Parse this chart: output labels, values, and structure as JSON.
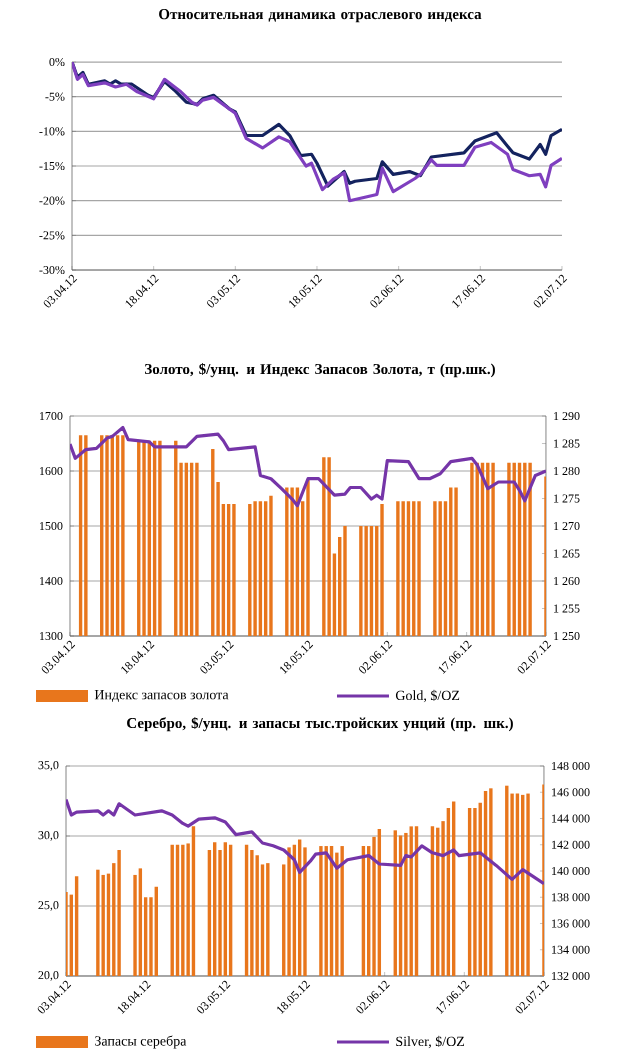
{
  "chart_data": [
    {
      "type": "line",
      "title": "Относительная динамика отраслевого индекса",
      "xlim": [
        "2012-04-03",
        "2012-07-02"
      ],
      "xticks": [
        {
          "value": "2012-04-03",
          "label": "03.04.12"
        },
        {
          "value": "2012-04-18",
          "label": "18.04.12"
        },
        {
          "value": "2012-05-03",
          "label": "03.05.12"
        },
        {
          "value": "2012-05-18",
          "label": "18.05.12"
        },
        {
          "value": "2012-06-02",
          "label": "02.06.12"
        },
        {
          "value": "2012-06-17",
          "label": "17.06.12"
        },
        {
          "value": "2012-07-02",
          "label": "02.07.12"
        }
      ],
      "ylim": [
        -30,
        0
      ],
      "yticks": [
        {
          "value": 0,
          "label": "0%"
        },
        {
          "value": -5,
          "label": "-5%"
        },
        {
          "value": -10,
          "label": "-10%"
        },
        {
          "value": -15,
          "label": "-15%"
        },
        {
          "value": -20,
          "label": "-20%"
        },
        {
          "value": -25,
          "label": "-25%"
        },
        {
          "value": -30,
          "label": "-30%"
        }
      ],
      "grid": "y",
      "series": [
        {
          "color": "#14235f",
          "x": [
            "2012-04-03",
            "2012-04-04",
            "2012-04-05",
            "2012-04-06",
            "2012-04-09",
            "2012-04-10",
            "2012-04-11",
            "2012-04-12",
            "2012-04-14",
            "2012-04-17",
            "2012-04-18",
            "2012-04-20",
            "2012-04-22",
            "2012-04-24",
            "2012-04-26",
            "2012-04-27",
            "2012-04-29",
            "2012-05-02",
            "2012-05-03",
            "2012-05-05",
            "2012-05-08",
            "2012-05-11",
            "2012-05-13",
            "2012-05-15",
            "2012-05-17",
            "2012-05-18",
            "2012-05-20",
            "2012-05-23",
            "2012-05-24",
            "2012-05-25",
            "2012-05-29",
            "2012-05-30",
            "2012-06-01",
            "2012-06-04",
            "2012-06-06",
            "2012-06-08",
            "2012-06-14",
            "2012-06-16",
            "2012-06-20",
            "2012-06-23",
            "2012-06-26",
            "2012-06-28",
            "2012-06-29",
            "2012-06-30",
            "2012-07-02"
          ],
          "values": [
            0,
            -2.2,
            -1.5,
            -3.2,
            -2.7,
            -3.2,
            -2.7,
            -3.2,
            -3.2,
            -4.8,
            -5.1,
            -2.8,
            -4.2,
            -5.8,
            -6.1,
            -5.3,
            -4.8,
            -6.8,
            -7.2,
            -10.6,
            -10.6,
            -9.0,
            -10.6,
            -13.5,
            -13.3,
            -14.6,
            -17.9,
            -15.8,
            -17.5,
            -17.2,
            -16.8,
            -14.4,
            -16.2,
            -15.8,
            -16.4,
            -13.7,
            -13.1,
            -11.4,
            -10.2,
            -13.1,
            -14.0,
            -11.9,
            -13.3,
            -10.6,
            -9.7
          ]
        },
        {
          "color": "#7f3fbf",
          "x": [
            "2012-04-03",
            "2012-04-04",
            "2012-04-05",
            "2012-04-06",
            "2012-04-09",
            "2012-04-11",
            "2012-04-13",
            "2012-04-15",
            "2012-04-18",
            "2012-04-20",
            "2012-04-23",
            "2012-04-25",
            "2012-04-26",
            "2012-04-27",
            "2012-04-29",
            "2012-05-03",
            "2012-05-05",
            "2012-05-08",
            "2012-05-11",
            "2012-05-13",
            "2012-05-16",
            "2012-05-17",
            "2012-05-19",
            "2012-05-21",
            "2012-05-23",
            "2012-05-24",
            "2012-05-29",
            "2012-05-30",
            "2012-06-01",
            "2012-06-05",
            "2012-06-06",
            "2012-06-08",
            "2012-06-09",
            "2012-06-14",
            "2012-06-16",
            "2012-06-19",
            "2012-06-22",
            "2012-06-23",
            "2012-06-26",
            "2012-06-28",
            "2012-06-29",
            "2012-06-30",
            "2012-07-02"
          ],
          "values": [
            0,
            -2.5,
            -1.8,
            -3.4,
            -3.0,
            -3.6,
            -3.2,
            -4.3,
            -5.3,
            -2.5,
            -4.3,
            -5.8,
            -6.2,
            -5.5,
            -5.1,
            -7.4,
            -11.0,
            -12.4,
            -10.8,
            -11.5,
            -15.0,
            -14.6,
            -18.4,
            -16.9,
            -16.0,
            -20.0,
            -19.1,
            -15.3,
            -18.7,
            -16.8,
            -16.2,
            -14.1,
            -14.9,
            -14.9,
            -12.3,
            -11.6,
            -13.3,
            -15.5,
            -16.4,
            -16.2,
            -18.0,
            -14.9,
            -13.9
          ]
        }
      ]
    },
    {
      "type": "bar",
      "title": "Золото, $/унц. и Индекс Запасов Золота, т (пр.шк.)",
      "xlim": [
        "2012-04-03",
        "2012-07-02"
      ],
      "xticks": [
        {
          "value": "2012-04-03",
          "label": "03.04.12"
        },
        {
          "value": "2012-04-18",
          "label": "18.04.12"
        },
        {
          "value": "2012-05-03",
          "label": "03.05.12"
        },
        {
          "value": "2012-05-18",
          "label": "18.05.12"
        },
        {
          "value": "2012-06-02",
          "label": "02.06.12"
        },
        {
          "value": "2012-06-17",
          "label": "17.06.12"
        },
        {
          "value": "2012-07-02",
          "label": "02.07.12"
        }
      ],
      "ylim": [
        1300,
        1700
      ],
      "yticks": [
        1300,
        1400,
        1500,
        1600,
        1700
      ],
      "y2lim": [
        1250,
        1290
      ],
      "y2ticks": [
        {
          "value": 1250,
          "label": "1 250"
        },
        {
          "value": 1255,
          "label": "1 255"
        },
        {
          "value": 1260,
          "label": "1 260"
        },
        {
          "value": 1265,
          "label": "1 265"
        },
        {
          "value": 1270,
          "label": "1 270"
        },
        {
          "value": 1275,
          "label": "1 275"
        },
        {
          "value": 1280,
          "label": "1 280"
        },
        {
          "value": 1285,
          "label": "1 285"
        },
        {
          "value": 1290,
          "label": "1 290"
        }
      ],
      "grid": "y",
      "legend": "bottom",
      "series": [
        {
          "name": "Индекс запасов золота",
          "type": "bar",
          "axis": "y2",
          "color": "#e8761c",
          "x": [
            "2012-04-05",
            "2012-04-06",
            "2012-04-09",
            "2012-04-10",
            "2012-04-11",
            "2012-04-12",
            "2012-04-13",
            "2012-04-16",
            "2012-04-17",
            "2012-04-18",
            "2012-04-19",
            "2012-04-20",
            "2012-04-23",
            "2012-04-24",
            "2012-04-25",
            "2012-04-26",
            "2012-04-27",
            "2012-04-30",
            "2012-05-01",
            "2012-05-02",
            "2012-05-03",
            "2012-05-04",
            "2012-05-07",
            "2012-05-08",
            "2012-05-09",
            "2012-05-10",
            "2012-05-11",
            "2012-05-14",
            "2012-05-15",
            "2012-05-16",
            "2012-05-17",
            "2012-05-18",
            "2012-05-21",
            "2012-05-22",
            "2012-05-23",
            "2012-05-24",
            "2012-05-25",
            "2012-05-28",
            "2012-05-29",
            "2012-05-30",
            "2012-05-31",
            "2012-06-01",
            "2012-06-04",
            "2012-06-05",
            "2012-06-06",
            "2012-06-07",
            "2012-06-08",
            "2012-06-11",
            "2012-06-12",
            "2012-06-13",
            "2012-06-14",
            "2012-06-15",
            "2012-06-18",
            "2012-06-19",
            "2012-06-20",
            "2012-06-21",
            "2012-06-22",
            "2012-06-25",
            "2012-06-26",
            "2012-06-27",
            "2012-06-28",
            "2012-06-29",
            "2012-07-02"
          ],
          "values": [
            1286.5,
            1286.5,
            1286.5,
            1286.5,
            1286.5,
            1286.5,
            1286.5,
            1285.5,
            1285.5,
            1285.5,
            1285.5,
            1285.5,
            1285.5,
            1281.5,
            1281.5,
            1281.5,
            1281.5,
            1284,
            1278,
            1274,
            1274,
            1274,
            1274,
            1274.5,
            1274.5,
            1274.5,
            1275.5,
            1277,
            1277,
            1277,
            1274.5,
            1278.5,
            1282.5,
            1282.5,
            1265,
            1268,
            1270,
            1270,
            1270,
            1270,
            1270,
            1274,
            1274.5,
            1274.5,
            1274.5,
            1274.5,
            1274.5,
            1274.5,
            1274.5,
            1274.5,
            1277,
            1277,
            1281.5,
            1281.5,
            1281.5,
            1281.5,
            1281.5,
            1281.5,
            1281.5,
            1281.5,
            1281.5,
            1281.5,
            1279
          ]
        },
        {
          "name": "Gold, $/OZ",
          "type": "line",
          "color": "#7535a8",
          "x": [
            "2012-04-03",
            "2012-04-04",
            "2012-04-06",
            "2012-04-08",
            "2012-04-10",
            "2012-04-11",
            "2012-04-13",
            "2012-04-14",
            "2012-04-18",
            "2012-04-19",
            "2012-04-25",
            "2012-04-27",
            "2012-05-01",
            "2012-05-02",
            "2012-05-03",
            "2012-05-08",
            "2012-05-09",
            "2012-05-11",
            "2012-05-13",
            "2012-05-15",
            "2012-05-16",
            "2012-05-18",
            "2012-05-20",
            "2012-05-23",
            "2012-05-25",
            "2012-05-26",
            "2012-05-28",
            "2012-05-30",
            "2012-05-31",
            "2012-06-01",
            "2012-06-02",
            "2012-06-06",
            "2012-06-08",
            "2012-06-10",
            "2012-06-12",
            "2012-06-14",
            "2012-06-18",
            "2012-06-19",
            "2012-06-21",
            "2012-06-23",
            "2012-06-26",
            "2012-06-27",
            "2012-06-28",
            "2012-06-30",
            "2012-07-02"
          ],
          "values": [
            1649,
            1623,
            1639,
            1641,
            1660,
            1663,
            1679,
            1657,
            1653,
            1644,
            1644,
            1663,
            1667,
            1655,
            1639,
            1644,
            1592,
            1586,
            1568,
            1549,
            1537,
            1586,
            1586,
            1556,
            1558,
            1570,
            1570,
            1549,
            1556,
            1549,
            1619,
            1617,
            1586,
            1586,
            1595,
            1617,
            1623,
            1611,
            1568,
            1580,
            1580,
            1565,
            1546,
            1592,
            1600
          ]
        }
      ]
    },
    {
      "type": "bar",
      "title": "Серебро, $/унц. и запасы тыс.тройских унций (пр. шк.)",
      "xlim": [
        "2012-04-03",
        "2012-07-02"
      ],
      "xticks": [
        {
          "value": "2012-04-03",
          "label": "03.04.12"
        },
        {
          "value": "2012-04-18",
          "label": "18.04.12"
        },
        {
          "value": "2012-05-03",
          "label": "03.05.12"
        },
        {
          "value": "2012-05-18",
          "label": "18.05.12"
        },
        {
          "value": "2012-06-02",
          "label": "02.06.12"
        },
        {
          "value": "2012-06-17",
          "label": "17.06.12"
        },
        {
          "value": "2012-07-02",
          "label": "02.07.12"
        }
      ],
      "ylim": [
        20,
        35
      ],
      "yticks": [
        {
          "value": 20,
          "label": "20,0"
        },
        {
          "value": 25,
          "label": "25,0"
        },
        {
          "value": 30,
          "label": "30,0"
        },
        {
          "value": 35,
          "label": "35,0"
        }
      ],
      "y2lim": [
        132000,
        148000
      ],
      "y2ticks": [
        {
          "value": 132000,
          "label": "132 000"
        },
        {
          "value": 134000,
          "label": "134 000"
        },
        {
          "value": 136000,
          "label": "136 000"
        },
        {
          "value": 138000,
          "label": "138 000"
        },
        {
          "value": 140000,
          "label": "140 000"
        },
        {
          "value": 142000,
          "label": "142 000"
        },
        {
          "value": 144000,
          "label": "144 000"
        },
        {
          "value": 146000,
          "label": "146 000"
        },
        {
          "value": 148000,
          "label": "148 000"
        }
      ],
      "grid": "y",
      "legend": "bottom",
      "series": [
        {
          "name": "Запасы серебра",
          "type": "bar",
          "axis": "y2",
          "color": "#e8761c",
          "x": [
            "2012-04-03",
            "2012-04-04",
            "2012-04-05",
            "2012-04-09",
            "2012-04-10",
            "2012-04-11",
            "2012-04-12",
            "2012-04-13",
            "2012-04-16",
            "2012-04-17",
            "2012-04-18",
            "2012-04-19",
            "2012-04-20",
            "2012-04-23",
            "2012-04-24",
            "2012-04-25",
            "2012-04-26",
            "2012-04-27",
            "2012-04-30",
            "2012-05-01",
            "2012-05-02",
            "2012-05-03",
            "2012-05-04",
            "2012-05-07",
            "2012-05-08",
            "2012-05-09",
            "2012-05-10",
            "2012-05-11",
            "2012-05-14",
            "2012-05-15",
            "2012-05-16",
            "2012-05-17",
            "2012-05-18",
            "2012-05-21",
            "2012-05-22",
            "2012-05-23",
            "2012-05-24",
            "2012-05-25",
            "2012-05-29",
            "2012-05-30",
            "2012-05-31",
            "2012-06-01",
            "2012-06-04",
            "2012-06-05",
            "2012-06-06",
            "2012-06-07",
            "2012-06-08",
            "2012-06-11",
            "2012-06-12",
            "2012-06-13",
            "2012-06-14",
            "2012-06-15",
            "2012-06-18",
            "2012-06-19",
            "2012-06-20",
            "2012-06-21",
            "2012-06-22",
            "2012-06-25",
            "2012-06-26",
            "2012-06-27",
            "2012-06-28",
            "2012-06-29",
            "2012-07-02"
          ],
          "values": [
            138400,
            138200,
            139600,
            140100,
            139700,
            139800,
            140600,
            141600,
            139700,
            140200,
            138000,
            138000,
            138800,
            142000,
            142000,
            142000,
            142100,
            143400,
            141600,
            142200,
            141600,
            142200,
            142000,
            142000,
            141600,
            141200,
            140500,
            140600,
            140500,
            141800,
            142000,
            142400,
            141800,
            141900,
            141900,
            141900,
            141400,
            141900,
            141900,
            141900,
            142600,
            143200,
            143100,
            142700,
            142900,
            143400,
            143400,
            143400,
            143300,
            143800,
            144800,
            145300,
            144800,
            144800,
            145200,
            146100,
            146300,
            146500,
            145900,
            145900,
            145800,
            145900,
            146600
          ]
        },
        {
          "name": "Silver, $/OZ",
          "type": "line",
          "color": "#7535a8",
          "x": [
            "2012-04-03",
            "2012-04-04",
            "2012-04-05",
            "2012-04-09",
            "2012-04-10",
            "2012-04-11",
            "2012-04-12",
            "2012-04-13",
            "2012-04-16",
            "2012-04-21",
            "2012-04-23",
            "2012-04-25",
            "2012-04-26",
            "2012-04-28",
            "2012-05-01",
            "2012-05-03",
            "2012-05-05",
            "2012-05-08",
            "2012-05-10",
            "2012-05-12",
            "2012-05-14",
            "2012-05-16",
            "2012-05-17",
            "2012-05-19",
            "2012-05-20",
            "2012-05-22",
            "2012-05-24",
            "2012-05-26",
            "2012-05-30",
            "2012-06-01",
            "2012-06-05",
            "2012-06-06",
            "2012-06-07",
            "2012-06-09",
            "2012-06-11",
            "2012-06-13",
            "2012-06-15",
            "2012-06-16",
            "2012-06-20",
            "2012-06-23",
            "2012-06-26",
            "2012-06-28",
            "2012-06-30",
            "2012-07-02"
          ],
          "values": [
            32.6,
            31.5,
            31.7,
            31.8,
            31.5,
            31.8,
            31.5,
            32.3,
            31.5,
            31.8,
            31.5,
            30.9,
            30.7,
            31.2,
            31.3,
            31.0,
            30.1,
            30.3,
            29.5,
            29.3,
            29.0,
            28.3,
            27.4,
            28.2,
            28.7,
            28.8,
            27.7,
            28.3,
            28.6,
            28.0,
            27.9,
            28.6,
            28.5,
            29.3,
            28.8,
            28.6,
            29.0,
            28.6,
            28.8,
            27.9,
            26.9,
            27.6,
            27.1,
            26.6
          ]
        }
      ]
    }
  ]
}
